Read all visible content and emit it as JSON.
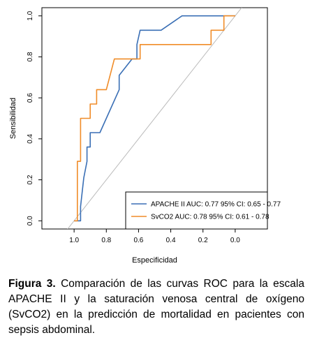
{
  "chart_data": {
    "type": "line",
    "title": "",
    "xlabel": "Especificidad",
    "ylabel": "Sensibilidad",
    "xlim": [
      1.2,
      -0.2
    ],
    "ylim": [
      -0.04,
      1.04
    ],
    "x_reversed": true,
    "x_ticks": [
      1.0,
      0.8,
      0.6,
      0.4,
      0.2,
      0.0
    ],
    "x_tick_labels": [
      "1.0",
      "0.8",
      "0.6",
      "0.4",
      "0.2",
      "0.0"
    ],
    "y_ticks": [
      0.0,
      0.2,
      0.4,
      0.6,
      0.8,
      1.0
    ],
    "y_tick_labels": [
      "0.0",
      "0.2",
      "0.4",
      "0.6",
      "0.8",
      "1.0"
    ],
    "grid": false,
    "legend_position": "bottom-right",
    "reference_line": {
      "from": [
        1,
        0
      ],
      "to": [
        0,
        1
      ],
      "color": "#bbbbbb"
    },
    "series": [
      {
        "name": "APACHE II AUC: 0.77 95% CI: 0.65 - 0.77",
        "color": "#3a6fb5",
        "points": [
          [
            1.0,
            0.0
          ],
          [
            0.96,
            0.0
          ],
          [
            0.96,
            0.07
          ],
          [
            0.94,
            0.21
          ],
          [
            0.92,
            0.29
          ],
          [
            0.92,
            0.36
          ],
          [
            0.9,
            0.36
          ],
          [
            0.9,
            0.43
          ],
          [
            0.84,
            0.43
          ],
          [
            0.72,
            0.64
          ],
          [
            0.72,
            0.71
          ],
          [
            0.64,
            0.79
          ],
          [
            0.61,
            0.79
          ],
          [
            0.61,
            0.86
          ],
          [
            0.59,
            0.93
          ],
          [
            0.46,
            0.93
          ],
          [
            0.33,
            1.0
          ],
          [
            0.0,
            1.0
          ]
        ]
      },
      {
        "name": "SvCO2 AUC: 0.78 95% CI: 0.61 - 0.78",
        "color": "#f08c28",
        "points": [
          [
            1.0,
            0.0
          ],
          [
            0.98,
            0.0
          ],
          [
            0.98,
            0.29
          ],
          [
            0.96,
            0.29
          ],
          [
            0.96,
            0.5
          ],
          [
            0.9,
            0.5
          ],
          [
            0.9,
            0.57
          ],
          [
            0.86,
            0.57
          ],
          [
            0.86,
            0.64
          ],
          [
            0.8,
            0.64
          ],
          [
            0.75,
            0.79
          ],
          [
            0.59,
            0.79
          ],
          [
            0.59,
            0.86
          ],
          [
            0.55,
            0.86
          ],
          [
            0.15,
            0.86
          ],
          [
            0.15,
            0.93
          ],
          [
            0.07,
            0.93
          ],
          [
            0.07,
            1.0
          ],
          [
            0.0,
            1.0
          ]
        ]
      }
    ]
  },
  "caption": {
    "label": "Figura 3.",
    "text": " Comparación de las curvas ROC para la escala APACHE II y la saturación venosa central de oxígeno (SvCO2) en la predicción de mortalidad en pacientes con sepsis abdominal."
  }
}
